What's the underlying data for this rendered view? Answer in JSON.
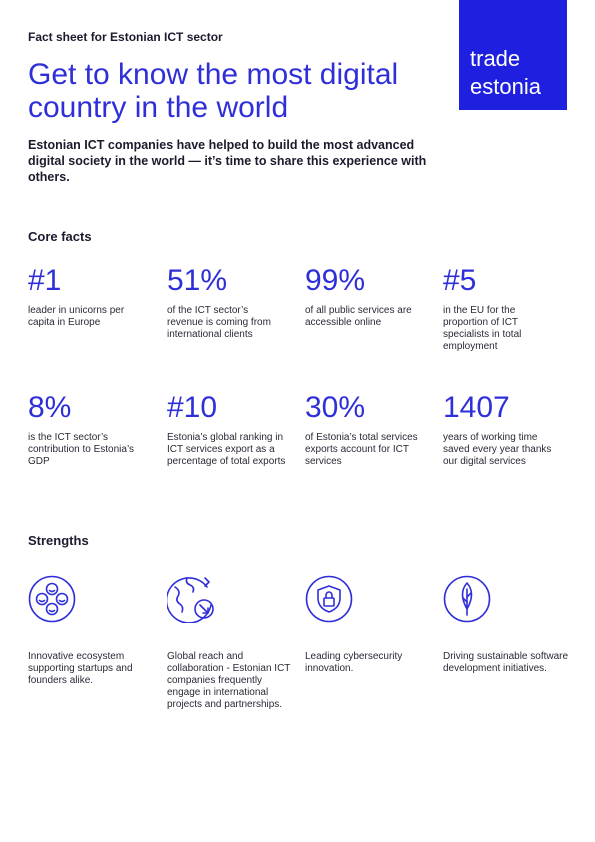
{
  "header": {
    "eyebrow": "Fact sheet for Estonian ICT sector",
    "headline": "Get to know the most digital country in the world",
    "intro": "Estonian ICT companies have helped to build the most advanced digital society in the world — it’s time to share this experience with others."
  },
  "logo": {
    "line1": "trade",
    "line2": "estonia"
  },
  "core_facts": {
    "title": "Core facts",
    "items": [
      {
        "value": "#1",
        "text": "leader in unicorns per capita in Europe"
      },
      {
        "value": "51%",
        "text": "of the ICT sector’s revenue is coming from international clients"
      },
      {
        "value": "99%",
        "text": "of all public services are accessible online"
      },
      {
        "value": "#5",
        "text": "in the EU for the proportion of ICT specialists in total employment"
      },
      {
        "value": "8%",
        "text": "is the ICT sector’s contribution to Estonia’s GDP"
      },
      {
        "value": "#10",
        "text": "Estonia’s global ranking in ICT services export as a percentage of total exports"
      },
      {
        "value": "30%",
        "text": "of Estonia’s total services exports account for ICT services"
      },
      {
        "value": "1407",
        "text": "years of working time saved every year thanks our digital services"
      }
    ]
  },
  "strengths": {
    "title": "Strengths",
    "items": [
      {
        "icon": "smiley-faces-icon",
        "text": "Innovative ecosystem supporting startups and founders alike."
      },
      {
        "icon": "globe-arrows-icon",
        "text": "Global reach and collaboration - Estonian ICT companies frequently engage in international projects and partnerships."
      },
      {
        "icon": "shield-lock-icon",
        "text": "Leading cybersecurity innovation."
      },
      {
        "icon": "leaf-icon",
        "text": "Driving sustainable software development initiatives."
      }
    ]
  },
  "colors": {
    "accent": "#2f2fd9",
    "logo_bg": "#1f1fe0",
    "text": "#1b1b2e"
  }
}
